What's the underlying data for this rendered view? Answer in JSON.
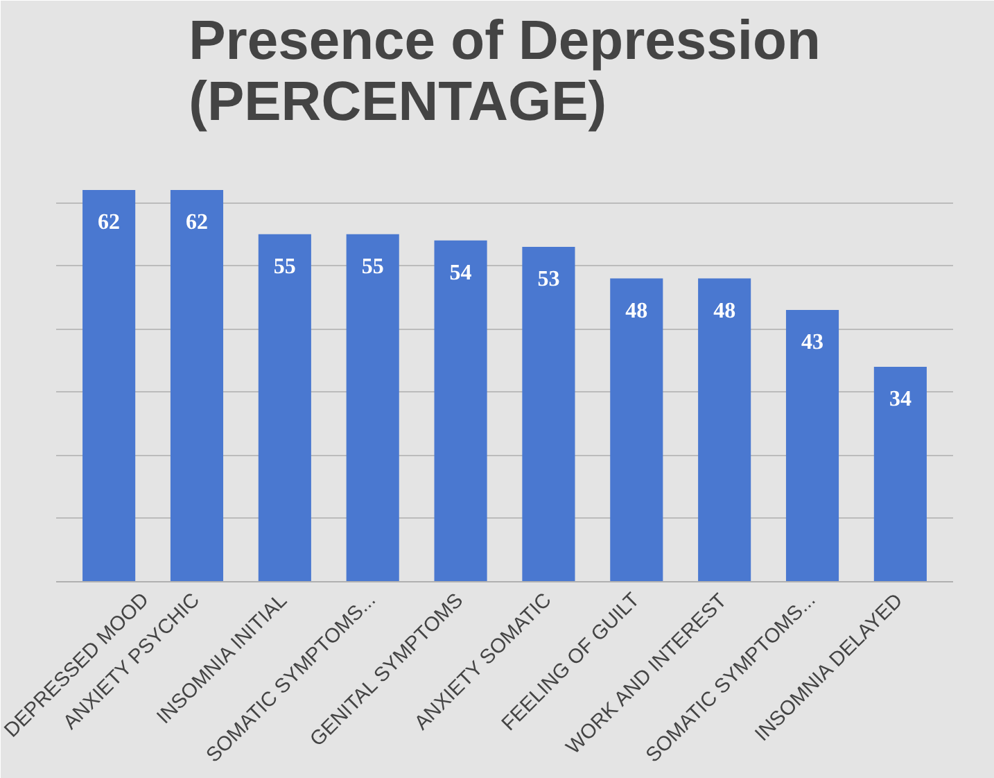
{
  "chart_data": {
    "type": "bar",
    "title": "Presence of Depression\n(PERCENTAGE)",
    "categories": [
      "DEPRESSED MOOD",
      "ANXIETY PSYCHIC",
      "INSOMNIA INITIAL",
      "SOMATIC SYMPTOMS...",
      "GENITAL SYMPTOMS",
      "ANXIETY SOMATIC",
      "FEELING OF GUILT",
      "WORK AND INTEREST",
      "SOMATIC SYMPTOMS...",
      "INSOMNIA DELAYED"
    ],
    "values": [
      62,
      62,
      55,
      55,
      54,
      53,
      48,
      48,
      43,
      34
    ],
    "color": "#4a78d0",
    "ylim": [
      0,
      70
    ],
    "yticks": [
      {
        "value": 0,
        "label": null
      },
      {
        "value": 10,
        "label": null
      },
      {
        "value": 20,
        "label": null
      },
      {
        "value": 30,
        "label": null
      },
      {
        "value": 40,
        "label": null
      },
      {
        "value": 50,
        "label": null
      },
      {
        "value": 60,
        "label": null
      },
      {
        "value": 70,
        "label": null
      }
    ],
    "grid": "y",
    "data_labels": true,
    "tick_labels": "x"
  }
}
